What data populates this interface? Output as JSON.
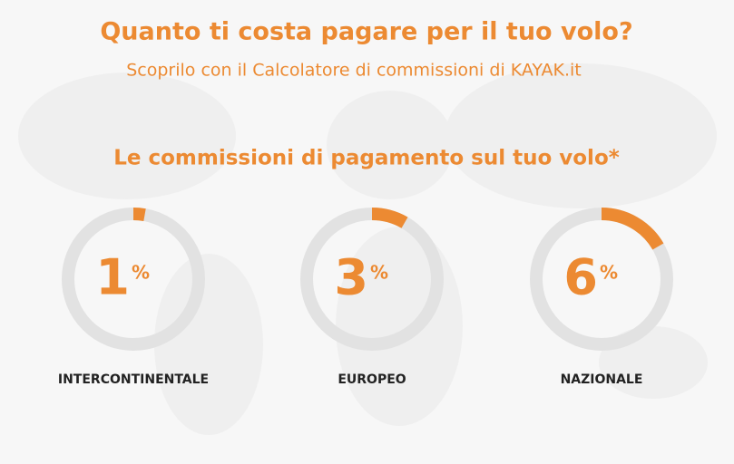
{
  "chart_data": {
    "type": "donut",
    "title": "Quanto ti costa pagare per il tuo volo?",
    "subtitle": "Scoprilo con il Calcolatore di commissioni di KAYAK.it",
    "heading": "Le commissioni di pagamento sul tuo volo*",
    "categories": [
      "INTERCONTINENTALE",
      "EUROPEO",
      "NAZIONALE"
    ],
    "values": [
      1,
      3,
      6
    ],
    "unit": "%",
    "ylim": [
      0,
      36
    ],
    "color": "#ec8a32",
    "track_color": "#e2e2e2"
  }
}
